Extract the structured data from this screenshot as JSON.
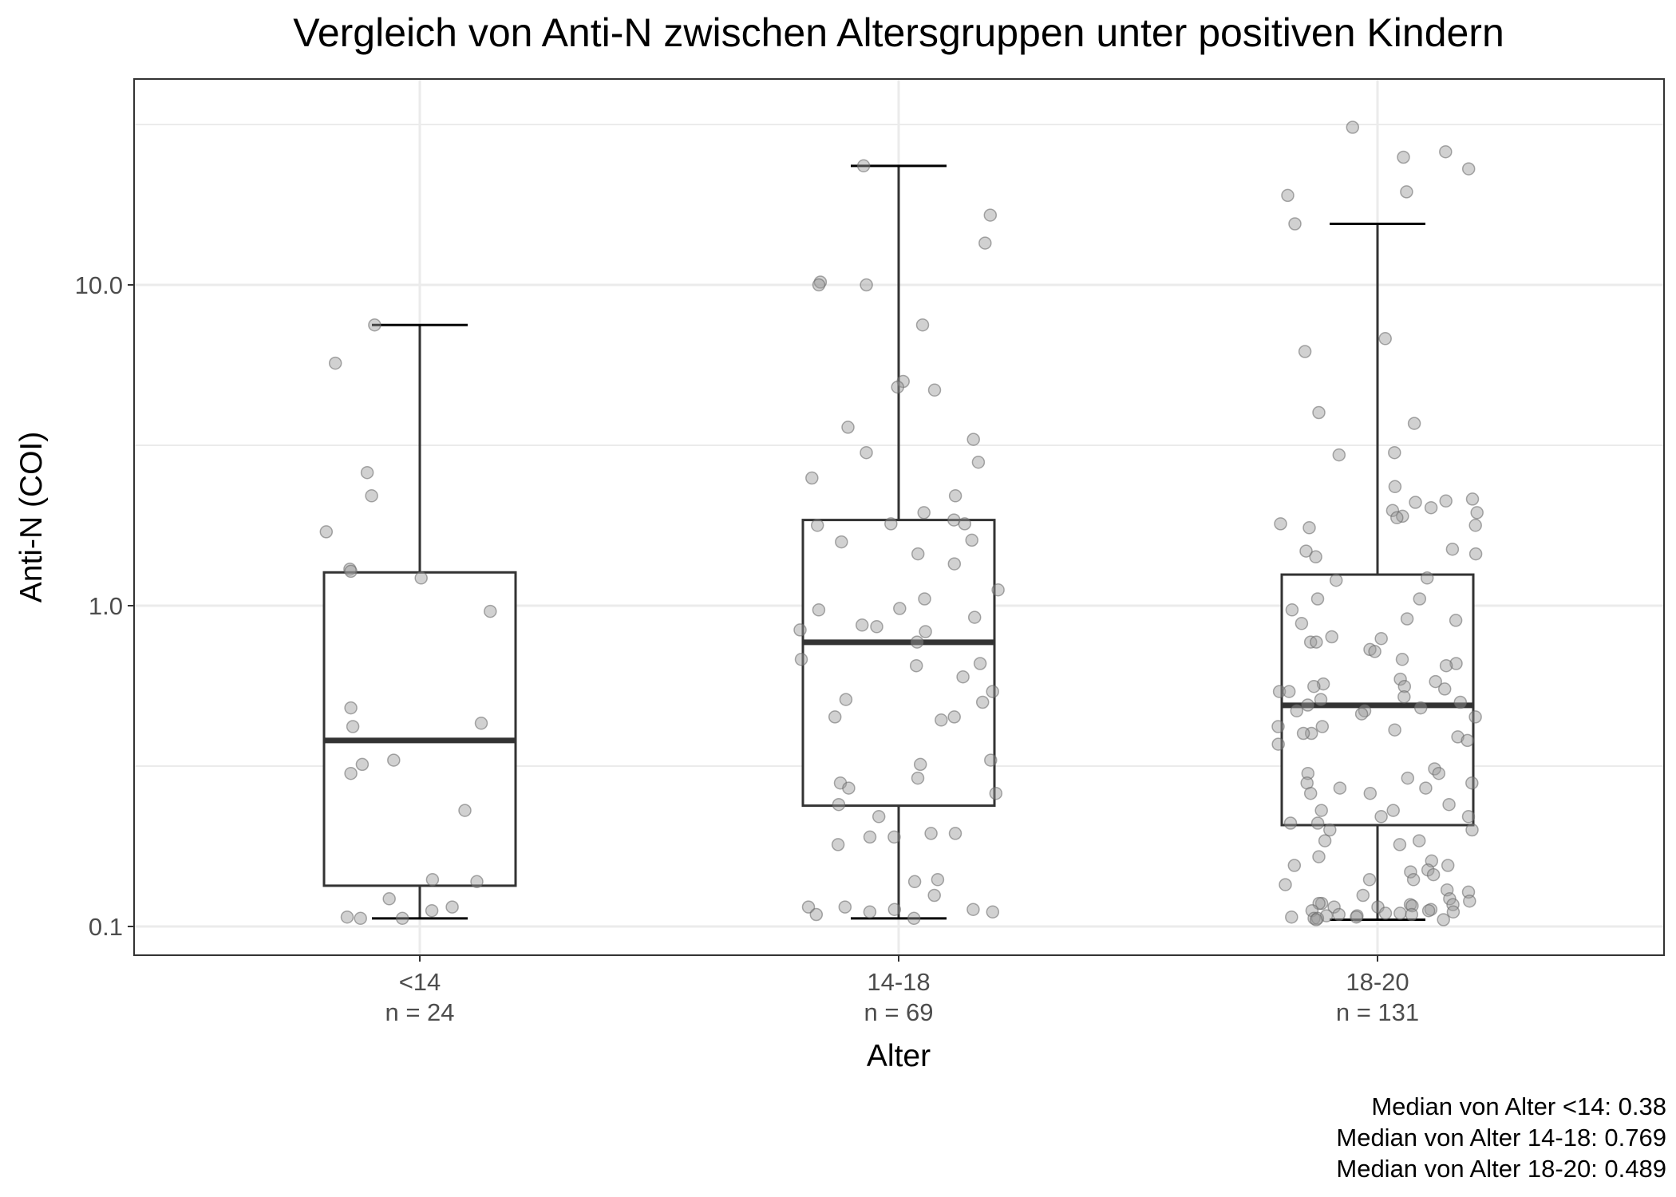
{
  "chart_data": {
    "type": "box",
    "title": "Vergleich von Anti-N zwischen Altersgruppen unter positiven Kindern",
    "xlabel": "Alter",
    "ylabel": "Anti-N (COI)",
    "y_scale": "log10",
    "ylim": [
      0.08,
      45
    ],
    "y_ticks": [
      0.1,
      1.0,
      10.0
    ],
    "y_tick_labels": [
      "0.1",
      "1.0",
      "10.0"
    ],
    "grid": true,
    "categories": [
      {
        "label": "<14",
        "n_label": "n = 24",
        "box": {
          "lower_whisker": 0.106,
          "q1": 0.134,
          "median": 0.38,
          "q3": 1.27,
          "upper_whisker": 7.5
        },
        "points": [
          7.5,
          5.7,
          2.6,
          2.2,
          1.7,
          1.3,
          1.28,
          1.22,
          0.96,
          0.48,
          0.43,
          0.42,
          0.33,
          0.32,
          0.3,
          0.23,
          0.14,
          0.138,
          0.122,
          0.115,
          0.112,
          0.107,
          0.106,
          0.106
        ]
      },
      {
        "label": "14-18",
        "n_label": "n = 69",
        "box": {
          "lower_whisker": 0.106,
          "q1": 0.238,
          "median": 0.769,
          "q3": 1.85,
          "upper_whisker": 23.5
        },
        "points": [
          23.5,
          16.5,
          13.5,
          10.2,
          10.0,
          10.0,
          7.5,
          5.0,
          4.8,
          4.7,
          3.6,
          3.3,
          3.0,
          2.8,
          2.5,
          2.2,
          1.95,
          1.85,
          1.8,
          1.8,
          1.78,
          1.6,
          1.58,
          1.45,
          1.35,
          1.12,
          1.05,
          0.98,
          0.97,
          0.92,
          0.87,
          0.86,
          0.84,
          0.83,
          0.77,
          0.68,
          0.66,
          0.65,
          0.6,
          0.54,
          0.51,
          0.5,
          0.45,
          0.44,
          0.45,
          0.33,
          0.32,
          0.29,
          0.28,
          0.27,
          0.26,
          0.24,
          0.22,
          0.195,
          0.195,
          0.19,
          0.19,
          0.18,
          0.14,
          0.138,
          0.125,
          0.115,
          0.115,
          0.113,
          0.113,
          0.111,
          0.111,
          0.109,
          0.106
        ]
      },
      {
        "label": "18-20",
        "n_label": "n = 131",
        "box": {
          "lower_whisker": 0.105,
          "q1": 0.207,
          "median": 0.489,
          "q3": 1.25,
          "upper_whisker": 15.5
        },
        "points": [
          31,
          26,
          25,
          23,
          19.5,
          19,
          15.5,
          6.8,
          6.2,
          4.0,
          3.7,
          3.0,
          2.95,
          2.35,
          2.15,
          2.12,
          2.1,
          2.02,
          1.98,
          1.95,
          1.9,
          1.88,
          1.8,
          1.78,
          1.75,
          1.5,
          1.48,
          1.45,
          1.42,
          1.22,
          1.2,
          1.05,
          1.05,
          0.97,
          0.91,
          0.9,
          0.88,
          0.8,
          0.79,
          0.77,
          0.77,
          0.73,
          0.72,
          0.68,
          0.66,
          0.65,
          0.59,
          0.58,
          0.57,
          0.56,
          0.56,
          0.55,
          0.54,
          0.54,
          0.52,
          0.51,
          0.5,
          0.49,
          0.48,
          0.47,
          0.47,
          0.46,
          0.45,
          0.42,
          0.42,
          0.41,
          0.4,
          0.4,
          0.39,
          0.38,
          0.37,
          0.31,
          0.3,
          0.3,
          0.29,
          0.28,
          0.28,
          0.27,
          0.27,
          0.26,
          0.26,
          0.24,
          0.23,
          0.23,
          0.22,
          0.22,
          0.21,
          0.21,
          0.2,
          0.2,
          0.185,
          0.185,
          0.18,
          0.165,
          0.16,
          0.155,
          0.155,
          0.15,
          0.148,
          0.145,
          0.14,
          0.14,
          0.135,
          0.13,
          0.128,
          0.125,
          0.122,
          0.12,
          0.118,
          0.118,
          0.117,
          0.117,
          0.116,
          0.115,
          0.115,
          0.113,
          0.112,
          0.112,
          0.111,
          0.11,
          0.11,
          0.109,
          0.109,
          0.108,
          0.108,
          0.107,
          0.107,
          0.106,
          0.106,
          0.105,
          0.105
        ]
      }
    ],
    "caption_lines": [
      "Median von Alter <14: 0.38",
      "Median von Alter 14-18: 0.769",
      "Median von Alter 18-20: 0.489"
    ],
    "colors": {
      "box_stroke": "#333333",
      "whisker": "#000000",
      "point_fill": "#999999",
      "point_stroke": "#666666",
      "grid": "#ebebeb",
      "panel_border": "#333333"
    }
  }
}
